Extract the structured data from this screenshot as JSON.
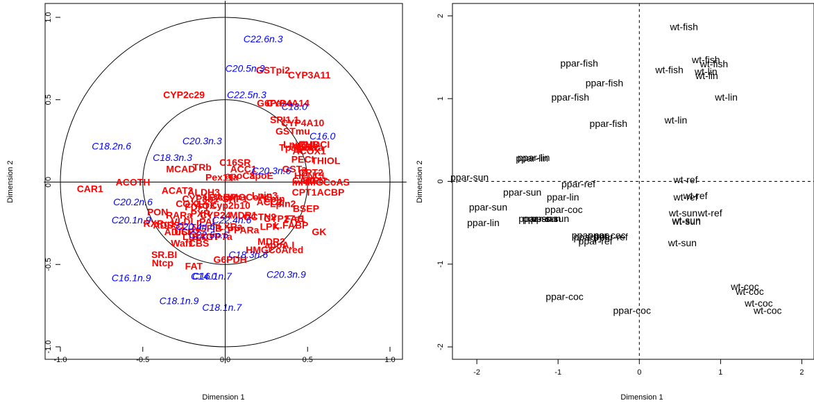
{
  "chart_data": [
    {
      "type": "scatter",
      "xlabel": "Dimension 1",
      "ylabel": "Dimension 2",
      "xlim": [
        -1.0,
        1.0
      ],
      "ylim": [
        -1.0,
        1.0
      ],
      "xticks": [
        "-1.0",
        "-0.5",
        "0.0",
        "0.5",
        "1.0"
      ],
      "yticks": [
        "-1.0",
        "-0.5",
        "0.0",
        "0.5",
        "1.0"
      ],
      "circles": [
        1.0,
        0.5
      ],
      "colors": {
        "genes": "#ff0000",
        "lipids": "#0000ff"
      },
      "series": [
        {
          "color": "#ff0000",
          "points": [
            {
              "label": "CYP3A11",
              "x": 0.51,
              "y": 0.65
            },
            {
              "label": "GSTpi2",
              "x": 0.29,
              "y": 0.68
            },
            {
              "label": "CYP2c29",
              "x": -0.25,
              "y": 0.53
            },
            {
              "label": "G6Pase",
              "x": 0.3,
              "y": 0.48
            },
            {
              "label": "CYP4A14",
              "x": 0.38,
              "y": 0.48
            },
            {
              "label": "SPI1.1",
              "x": 0.36,
              "y": 0.38
            },
            {
              "label": "CYP4A10",
              "x": 0.47,
              "y": 0.36
            },
            {
              "label": "GSTmu",
              "x": 0.41,
              "y": 0.31
            },
            {
              "label": "Lpin1",
              "x": 0.43,
              "y": 0.23
            },
            {
              "label": "THB",
              "x": 0.51,
              "y": 0.23
            },
            {
              "label": "PMDCI",
              "x": 0.54,
              "y": 0.23
            },
            {
              "label": "ACOX1",
              "x": 0.51,
              "y": 0.19
            },
            {
              "label": "PECI",
              "x": 0.47,
              "y": 0.14
            },
            {
              "label": "THIOL",
              "x": 0.61,
              "y": 0.13
            },
            {
              "label": "GSTa",
              "x": 0.42,
              "y": 0.08
            },
            {
              "label": "CPT2",
              "x": 0.52,
              "y": 0.06
            },
            {
              "label": "BIEN",
              "x": 0.54,
              "y": 0.01
            },
            {
              "label": "CACP",
              "x": 0.49,
              "y": 0.01
            },
            {
              "label": "mHMGCoAS",
              "x": 0.58,
              "y": 0.0
            },
            {
              "label": "CPT1",
              "x": 0.48,
              "y": -0.06
            },
            {
              "label": "ACBP",
              "x": 0.64,
              "y": -0.06
            },
            {
              "label": "BSEP",
              "x": 0.49,
              "y": -0.16
            },
            {
              "label": "Pex11a",
              "x": -0.02,
              "y": 0.03
            },
            {
              "label": "Tpbeta",
              "x": 0.5,
              "y": 0.21
            },
            {
              "label": "Tpalpha",
              "x": 0.44,
              "y": 0.21
            },
            {
              "label": "L.FABP",
              "x": 0.4,
              "y": -0.26
            },
            {
              "label": "HPNCL",
              "x": 0.52,
              "y": 0.04
            },
            {
              "label": "Ntcp",
              "x": -0.38,
              "y": -0.49
            },
            {
              "label": "CAR1",
              "x": -0.82,
              "y": -0.04
            },
            {
              "label": "ACOTH",
              "x": -0.56,
              "y": 0.0
            },
            {
              "label": "MCAD",
              "x": -0.27,
              "y": 0.08
            },
            {
              "label": "TRb",
              "x": -0.14,
              "y": 0.09
            },
            {
              "label": "C16SR",
              "x": 0.06,
              "y": 0.12
            },
            {
              "label": "ACC1",
              "x": 0.11,
              "y": 0.08
            },
            {
              "label": "HMGCoAred",
              "x": 0.3,
              "y": -0.41
            },
            {
              "label": "ACC2",
              "x": 0.27,
              "y": -0.12
            },
            {
              "label": "FAS",
              "x": 0.42,
              "y": -0.22
            },
            {
              "label": "GK",
              "x": 0.57,
              "y": -0.3
            },
            {
              "label": "apoA.I",
              "x": 0.33,
              "y": -0.38
            },
            {
              "label": "FAT",
              "x": -0.19,
              "y": -0.51
            },
            {
              "label": "SR.BI",
              "x": -0.37,
              "y": -0.44
            },
            {
              "label": "UCP2",
              "x": -0.23,
              "y": -0.3
            },
            {
              "label": "PPARa",
              "x": 0.11,
              "y": -0.29
            },
            {
              "label": "G6PDH",
              "x": 0.03,
              "y": -0.47
            },
            {
              "label": "LPK",
              "x": 0.27,
              "y": -0.27
            },
            {
              "label": "LXRa",
              "x": 0.03,
              "y": -0.27
            },
            {
              "label": "i.BABP",
              "x": -0.03,
              "y": -0.09
            },
            {
              "label": "ACAT2",
              "x": -0.29,
              "y": -0.05
            },
            {
              "label": "MDR2",
              "x": 0.28,
              "y": -0.36
            },
            {
              "label": "CYP27a1",
              "x": 0.36,
              "y": -0.22
            },
            {
              "label": "Waf1",
              "x": -0.26,
              "y": -0.37
            },
            {
              "label": "Cyp2b10",
              "x": 0.03,
              "y": -0.14
            },
            {
              "label": "MDR1",
              "x": 0.11,
              "y": -0.2
            },
            {
              "label": "VLDLr",
              "x": -0.24,
              "y": -0.24
            },
            {
              "label": "CYP24",
              "x": -0.06,
              "y": -0.2
            },
            {
              "label": "SHP1",
              "x": 0.06,
              "y": -0.1
            },
            {
              "label": "OCTN2",
              "x": 0.21,
              "y": -0.21
            },
            {
              "label": "PON",
              "x": -0.41,
              "y": -0.18
            },
            {
              "label": "RXRg1",
              "x": -0.4,
              "y": -0.25
            },
            {
              "label": "FDFT",
              "x": -0.17,
              "y": -0.15
            },
            {
              "label": "CYP8b1",
              "x": -0.15,
              "y": -0.1
            },
            {
              "label": "NGFiB",
              "x": -0.11,
              "y": -0.28
            },
            {
              "label": "apoE",
              "x": 0.22,
              "y": 0.04
            },
            {
              "label": "apoC3",
              "x": 0.09,
              "y": 0.04
            },
            {
              "label": "ALDH3",
              "x": -0.13,
              "y": -0.06
            },
            {
              "label": "cHMGCoAS",
              "x": 0.12,
              "y": -0.09
            },
            {
              "label": "LDLr",
              "x": -0.19,
              "y": -0.33
            },
            {
              "label": "RARa",
              "x": -0.28,
              "y": -0.2
            },
            {
              "label": "BACT",
              "x": -0.12,
              "y": -0.33
            },
            {
              "label": "AOX",
              "x": -0.12,
              "y": -0.14
            },
            {
              "label": "ADISP",
              "x": -0.28,
              "y": -0.3
            },
            {
              "label": "ADSS1",
              "x": -0.34,
              "y": -0.26
            },
            {
              "label": "CBS",
              "x": -0.16,
              "y": -0.37
            },
            {
              "label": "COX1",
              "x": -0.22,
              "y": -0.13
            },
            {
              "label": "CYP7a",
              "x": -0.05,
              "y": -0.33
            },
            {
              "label": "Lpin",
              "x": 0.3,
              "y": -0.1
            },
            {
              "label": "Lpin2",
              "x": 0.35,
              "y": -0.13
            },
            {
              "label": "Lpin3",
              "x": 0.24,
              "y": -0.08
            },
            {
              "label": "PAL",
              "x": -0.1,
              "y": -0.24
            },
            {
              "label": "PXR",
              "x": -0.15,
              "y": -0.19
            }
          ]
        },
        {
          "color": "#0000ff",
          "points": [
            {
              "label": "C22.6n.3",
              "x": 0.23,
              "y": 0.87
            },
            {
              "label": "C20.5n.3",
              "x": 0.12,
              "y": 0.69
            },
            {
              "label": "C22.5n.3",
              "x": 0.13,
              "y": 0.53
            },
            {
              "label": "C18.0",
              "x": 0.42,
              "y": 0.46
            },
            {
              "label": "C18.2n.6",
              "x": -0.69,
              "y": 0.22
            },
            {
              "label": "C20.3n.3",
              "x": -0.14,
              "y": 0.25
            },
            {
              "label": "C18.3n.3",
              "x": -0.32,
              "y": 0.15
            },
            {
              "label": "C16.0",
              "x": 0.59,
              "y": 0.28
            },
            {
              "label": "C20.3n.6",
              "x": 0.28,
              "y": 0.07
            },
            {
              "label": "C20.2n.6",
              "x": -0.56,
              "y": -0.12
            },
            {
              "label": "C20.1n.9",
              "x": -0.57,
              "y": -0.23
            },
            {
              "label": "C20.4n.6",
              "x": -0.18,
              "y": -0.27
            },
            {
              "label": "C22.4n.6",
              "x": 0.04,
              "y": -0.23
            },
            {
              "label": "C22.5n.6",
              "x": -0.1,
              "y": -0.32
            },
            {
              "label": "C18.3n.6",
              "x": 0.14,
              "y": -0.44
            },
            {
              "label": "C16.1n.9",
              "x": -0.57,
              "y": -0.58
            },
            {
              "label": "C14.0",
              "x": -0.13,
              "y": -0.57
            },
            {
              "label": "C16.1n.7",
              "x": -0.08,
              "y": -0.57
            },
            {
              "label": "C20.3n.9",
              "x": 0.37,
              "y": -0.56
            },
            {
              "label": "C18.1n.9",
              "x": -0.28,
              "y": -0.72
            },
            {
              "label": "C18.1n.7",
              "x": -0.02,
              "y": -0.76
            }
          ]
        }
      ]
    },
    {
      "type": "scatter",
      "xlabel": "Dimension 1",
      "ylabel": "Dimension 2",
      "xlim": [
        -2.3,
        2.15
      ],
      "ylim": [
        -2.15,
        2.15
      ],
      "xticks": [
        "-2",
        "-1",
        "0",
        "1",
        "2"
      ],
      "yticks": [
        "-2",
        "-1",
        "0",
        "1",
        "2"
      ],
      "reference_lines": {
        "x": 0,
        "y": 0,
        "style": "dashed"
      },
      "points": [
        {
          "label": "wt-fish",
          "x": 0.55,
          "y": 1.87
        },
        {
          "label": "ppar-fish",
          "x": -0.74,
          "y": 1.43
        },
        {
          "label": "wt-fish",
          "x": 0.82,
          "y": 1.47
        },
        {
          "label": "wt-fish",
          "x": 0.92,
          "y": 1.42
        },
        {
          "label": "wt-fish",
          "x": 0.37,
          "y": 1.35
        },
        {
          "label": "wt-lin",
          "x": 0.82,
          "y": 1.33
        },
        {
          "label": "wt-lin",
          "x": 0.83,
          "y": 1.28
        },
        {
          "label": "ppar-fish",
          "x": -0.43,
          "y": 1.19
        },
        {
          "label": "ppar-fish",
          "x": -0.85,
          "y": 1.02
        },
        {
          "label": "wt-lin",
          "x": 1.07,
          "y": 1.02
        },
        {
          "label": "ppar-fish",
          "x": -0.38,
          "y": 0.7
        },
        {
          "label": "wt-lin",
          "x": 0.45,
          "y": 0.74
        },
        {
          "label": "ppar-lin",
          "x": -1.32,
          "y": 0.28
        },
        {
          "label": "ppar-lin",
          "x": -1.3,
          "y": 0.29
        },
        {
          "label": "ppar-sun",
          "x": -2.09,
          "y": 0.05
        },
        {
          "label": "wt-ref",
          "x": 0.57,
          "y": 0.02
        },
        {
          "label": "ppar-ref",
          "x": -0.75,
          "y": -0.03
        },
        {
          "label": "ppar-sun",
          "x": -1.44,
          "y": -0.13
        },
        {
          "label": "ppar-lin",
          "x": -0.94,
          "y": -0.19
        },
        {
          "label": "wt-ref",
          "x": 0.69,
          "y": -0.17
        },
        {
          "label": "wt-ref",
          "x": 0.57,
          "y": -0.19
        },
        {
          "label": "ppar-sun",
          "x": -1.86,
          "y": -0.31
        },
        {
          "label": "ppar-coc",
          "x": -0.93,
          "y": -0.34
        },
        {
          "label": "wt-sun",
          "x": 0.54,
          "y": -0.38
        },
        {
          "label": "wt-ref",
          "x": 0.87,
          "y": -0.38
        },
        {
          "label": "ppar-sun",
          "x": -1.25,
          "y": -0.45
        },
        {
          "label": "ppar-sun",
          "x": -1.2,
          "y": -0.45
        },
        {
          "label": "ppar-sun",
          "x": -1.1,
          "y": -0.45
        },
        {
          "label": "wt-sun",
          "x": 0.58,
          "y": -0.47
        },
        {
          "label": "wt-sun",
          "x": 0.58,
          "y": -0.48
        },
        {
          "label": "ppar-lin",
          "x": -1.92,
          "y": -0.5
        },
        {
          "label": "ppar-coc",
          "x": -0.6,
          "y": -0.65
        },
        {
          "label": "ppar-ref",
          "x": -0.6,
          "y": -0.67
        },
        {
          "label": "ppar-coc",
          "x": -0.4,
          "y": -0.65
        },
        {
          "label": "ppar-ref",
          "x": -0.35,
          "y": -0.67
        },
        {
          "label": "ppar-ref",
          "x": -0.54,
          "y": -0.72
        },
        {
          "label": "wt-sun",
          "x": 0.53,
          "y": -0.74
        },
        {
          "label": "wt-coc",
          "x": 1.3,
          "y": -1.27
        },
        {
          "label": "wt-coc",
          "x": 1.36,
          "y": -1.33
        },
        {
          "label": "ppar-coc",
          "x": -0.92,
          "y": -1.39
        },
        {
          "label": "wt-coc",
          "x": 1.47,
          "y": -1.47
        },
        {
          "label": "ppar-coc",
          "x": -0.09,
          "y": -1.56
        },
        {
          "label": "wt-coc",
          "x": 1.58,
          "y": -1.56
        }
      ]
    }
  ]
}
